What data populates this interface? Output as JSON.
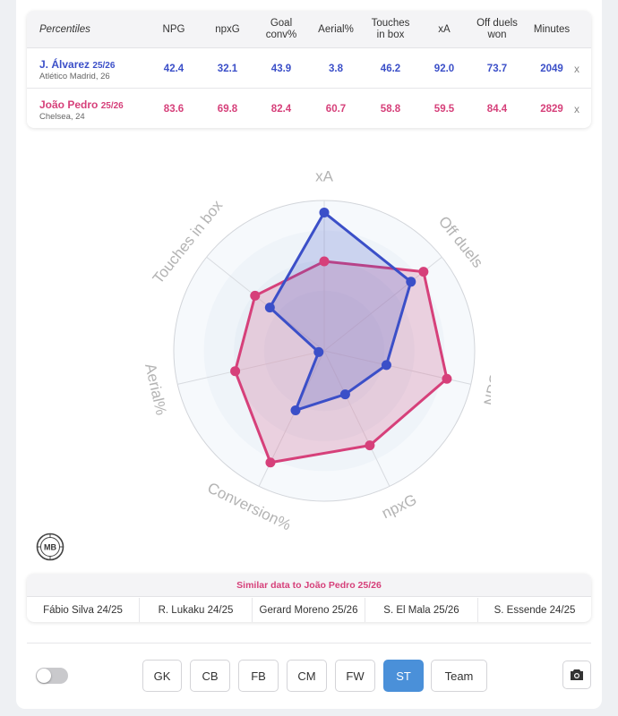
{
  "table": {
    "header": {
      "label": "Percentiles",
      "columns": [
        "NPG",
        "npxG",
        "Goal\nconv%",
        "Aerial%",
        "Touches\nin box",
        "xA",
        "Off duels\nwon",
        "Minutes"
      ]
    },
    "players": [
      {
        "name": "J. Álvarez",
        "season": "25/26",
        "club": "Atlético Madrid, 26",
        "values": [
          "42.4",
          "32.1",
          "43.9",
          "3.8",
          "46.2",
          "92.0",
          "73.7",
          "2049"
        ],
        "remove": "x",
        "color": "#3b4fc8"
      },
      {
        "name": "João Pedro",
        "season": "25/26",
        "club": "Chelsea, 24",
        "values": [
          "83.6",
          "69.8",
          "82.4",
          "60.7",
          "58.8",
          "59.5",
          "84.4",
          "2829"
        ],
        "remove": "x",
        "color": "#d6407a"
      }
    ]
  },
  "chart_data": {
    "type": "radar",
    "axes": [
      "xA",
      "Off duels",
      "NPG",
      "npxG",
      "Conversion%",
      "Aerial%",
      "Touches in box"
    ],
    "range": [
      0,
      100
    ],
    "series": [
      {
        "name": "J. Álvarez",
        "color": "#3b4fc8",
        "values": [
          92.0,
          73.7,
          42.4,
          32.1,
          43.9,
          3.8,
          46.2
        ]
      },
      {
        "name": "João Pedro",
        "color": "#d6407a",
        "values": [
          59.5,
          84.4,
          83.6,
          69.8,
          82.4,
          60.7,
          58.8
        ]
      }
    ],
    "legend": "none"
  },
  "logo_text": "MB",
  "similar": {
    "title": "Similar data to João Pedro 25/26",
    "items": [
      "Fábio Silva 24/25",
      "R. Lukaku 24/25",
      "Gerard Moreno 25/26",
      "S. El Mala 25/26",
      "S. Essende 24/25"
    ]
  },
  "positions": {
    "buttons": [
      "GK",
      "CB",
      "FB",
      "CM",
      "FW",
      "ST",
      "Team"
    ],
    "active": "ST"
  },
  "icons": {
    "camera": "camera-icon",
    "toggle": "toggle-switch"
  }
}
